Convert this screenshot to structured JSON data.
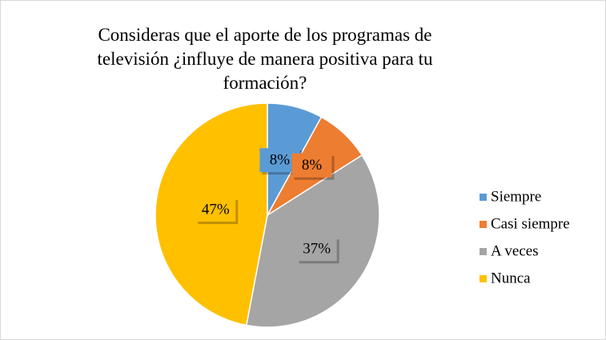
{
  "chart_data": {
    "type": "pie",
    "title": "Consideras que el aporte de los programas de televisión ¿influye de manera positiva para tu formación?",
    "categories": [
      "Siempre",
      "Casi siempre",
      "A veces",
      "Nunca"
    ],
    "values": [
      8,
      8,
      37,
      47
    ],
    "value_labels": [
      "8%",
      "8%",
      "37%",
      "47%"
    ],
    "colors": [
      "#5b9bd5",
      "#ed7d31",
      "#a5a5a5",
      "#ffc000"
    ],
    "legend": "right"
  }
}
